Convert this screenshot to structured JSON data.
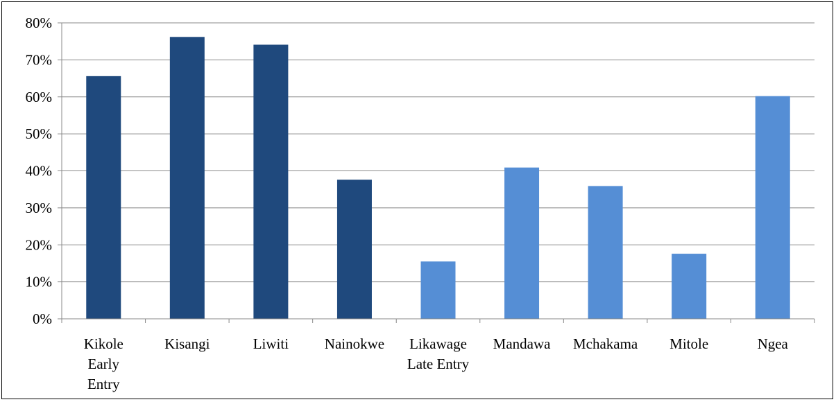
{
  "chart_data": {
    "type": "bar",
    "categories": [
      [
        "Kikole",
        "Early",
        "Entry"
      ],
      [
        "Kisangi"
      ],
      [
        "Liwiti"
      ],
      [
        "Nainokwe"
      ],
      [
        "Likawage",
        "Late Entry"
      ],
      [
        "Mandawa"
      ],
      [
        "Mchakama"
      ],
      [
        "Mitole"
      ],
      [
        "Ngea"
      ]
    ],
    "values": [
      0.656,
      0.762,
      0.741,
      0.376,
      0.155,
      0.409,
      0.359,
      0.176,
      0.602
    ],
    "groups": [
      "dark",
      "dark",
      "dark",
      "dark",
      "light",
      "light",
      "light",
      "light",
      "light"
    ],
    "colors": {
      "dark": "#1f497d",
      "light": "#558ed5",
      "grid": "#888888",
      "axis": "#888888"
    },
    "ylim": [
      0,
      0.8
    ],
    "yticks": [
      "0%",
      "10%",
      "20%",
      "30%",
      "40%",
      "50%",
      "60%",
      "70%",
      "80%"
    ],
    "grid": true,
    "title": "",
    "xlabel": "",
    "ylabel": ""
  }
}
